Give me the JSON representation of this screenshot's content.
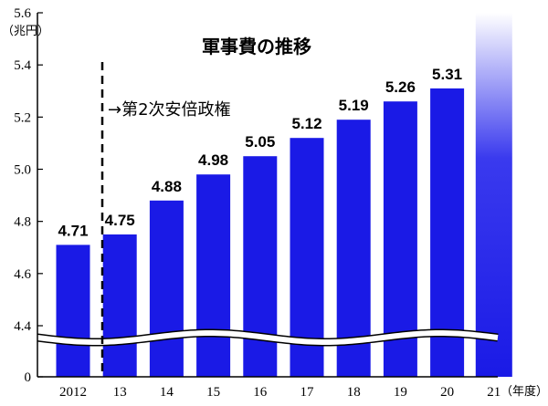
{
  "chart_data": {
    "type": "bar",
    "title": "軍事費の推移",
    "unit_label": "（兆円）",
    "x_unit_label": "（年度）",
    "categories": [
      "2012",
      "13",
      "14",
      "15",
      "16",
      "17",
      "18",
      "19",
      "20",
      "21"
    ],
    "values": [
      4.71,
      4.75,
      4.88,
      4.98,
      5.05,
      5.12,
      5.19,
      5.26,
      5.31,
      null
    ],
    "value_labels": [
      "4.71",
      "4.75",
      "4.88",
      "4.98",
      "5.05",
      "5.12",
      "5.19",
      "5.26",
      "5.31",
      ""
    ],
    "y_ticks": [
      "0",
      "4.4",
      "4.6",
      "4.8",
      "5.0",
      "5.2",
      "5.4",
      "5.6"
    ],
    "ylim": [
      4.4,
      5.6
    ],
    "axis_break": true,
    "annotation": "→第2次安倍政権",
    "annotation_after_category": "2012",
    "grid": false,
    "colors": {
      "bar": "#1a1ae6",
      "axis": "#000000",
      "last_bar_gradient_top": "#ffffff"
    }
  }
}
